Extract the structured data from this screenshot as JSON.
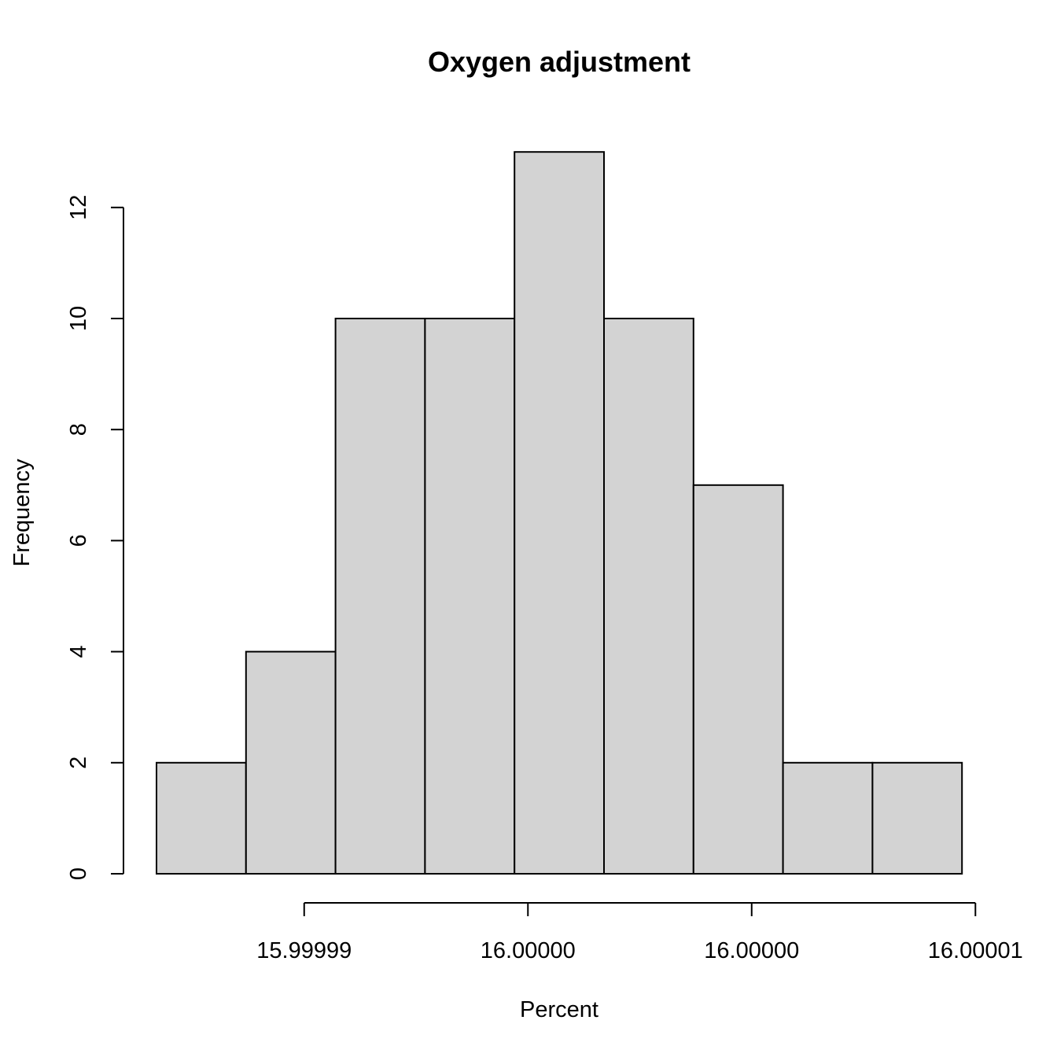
{
  "chart_data": {
    "type": "bar",
    "subtype": "histogram",
    "title": "Oxygen adjustment",
    "xlabel": "Percent",
    "ylabel": "Frequency",
    "bar_color": "#d3d3d3",
    "edge_color": "#000000",
    "bins": [
      {
        "x0": 15.9999855,
        "x1": 15.9999875,
        "count": 2
      },
      {
        "x0": 15.9999875,
        "x1": 15.9999895,
        "count": 4
      },
      {
        "x0": 15.9999895,
        "x1": 15.9999915,
        "count": 10
      },
      {
        "x0": 15.9999915,
        "x1": 15.9999935,
        "count": 10
      },
      {
        "x0": 15.9999935,
        "x1": 15.9999955,
        "count": 13
      },
      {
        "x0": 15.9999955,
        "x1": 15.9999975,
        "count": 10
      },
      {
        "x0": 15.9999975,
        "x1": 15.9999995,
        "count": 7
      },
      {
        "x0": 15.9999995,
        "x1": 16.0000015,
        "count": 2
      },
      {
        "x0": 16.0000015,
        "x1": 16.0000035,
        "count": 2
      }
    ],
    "x_ticks": [
      {
        "value": 15.9999888,
        "label": "15.99999"
      },
      {
        "value": 15.9999938,
        "label": "16.00000"
      },
      {
        "value": 15.9999988,
        "label": "16.00000"
      },
      {
        "value": 16.0000038,
        "label": "16.00001"
      }
    ],
    "y_ticks": [
      {
        "value": 0,
        "label": "0"
      },
      {
        "value": 2,
        "label": "2"
      },
      {
        "value": 4,
        "label": "4"
      },
      {
        "value": 6,
        "label": "6"
      },
      {
        "value": 8,
        "label": "8"
      },
      {
        "value": 10,
        "label": "10"
      },
      {
        "value": 12,
        "label": "12"
      }
    ],
    "xlim": [
      15.999985,
      16.0000038
    ],
    "ylim": [
      0,
      13
    ],
    "grid": false
  }
}
